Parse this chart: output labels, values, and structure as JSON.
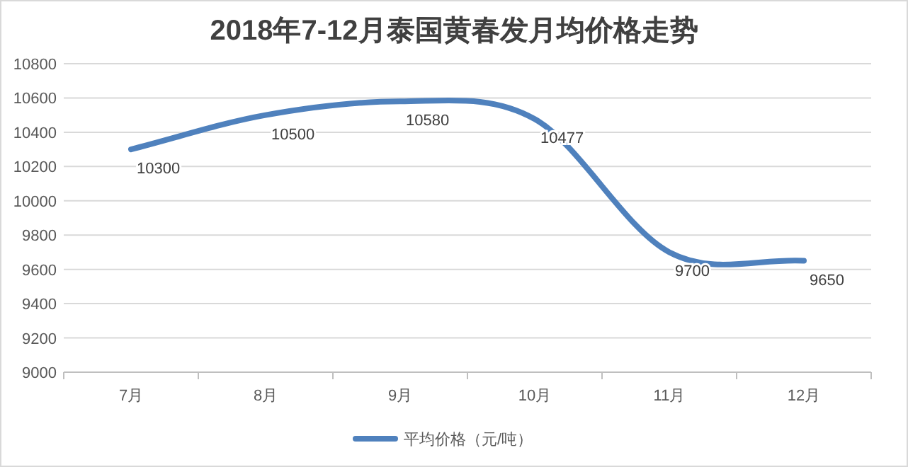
{
  "chart_data": {
    "type": "line",
    "title": "2018年7-12月泰国黄春发月均价格走势",
    "categories": [
      "7月",
      "8月",
      "9月",
      "10月",
      "11月",
      "12月"
    ],
    "series": [
      {
        "name": "平均价格（元/吨）",
        "color": "#4f81bd",
        "values": [
          10300,
          10500,
          10580,
          10477,
          9700,
          9650
        ]
      }
    ],
    "ylim": [
      9000,
      10800
    ],
    "yticks": [
      9000,
      9200,
      9400,
      9600,
      9800,
      10000,
      10200,
      10400,
      10600,
      10800
    ],
    "grid": "y",
    "legend": "bottom",
    "data_labels": true
  }
}
